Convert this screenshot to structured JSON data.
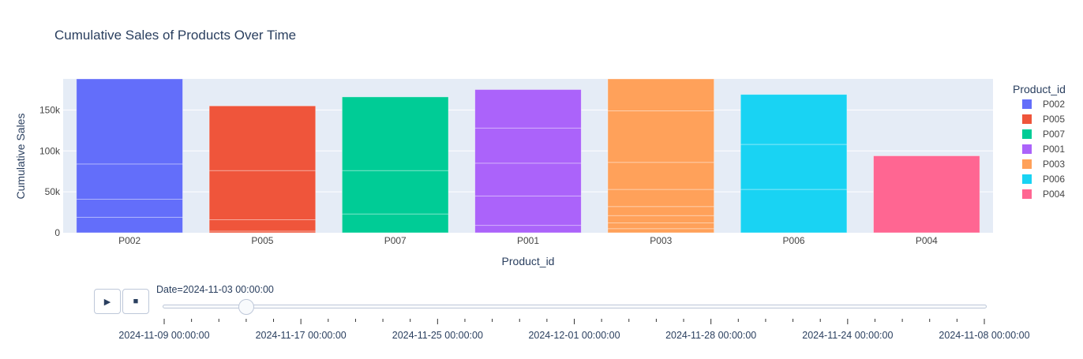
{
  "chart_data": {
    "type": "bar",
    "title": "Cumulative Sales of Products Over Time",
    "xlabel": "Product_id",
    "ylabel": "Cumulative Sales",
    "ylim": [
      0,
      188000
    ],
    "yticks": [
      0,
      50000,
      100000,
      150000
    ],
    "ytick_labels": [
      "0",
      "50k",
      "100k",
      "150k"
    ],
    "grid": true,
    "legend_position": "right",
    "legend_title": "Product_id",
    "categories": [
      "P002",
      "P005",
      "P007",
      "P001",
      "P003",
      "P006",
      "P004"
    ],
    "series": [
      {
        "name": "P002",
        "color": "#636efa",
        "segments": [
          19000,
          22000,
          43000,
          104000
        ]
      },
      {
        "name": "P005",
        "color": "#ef553b",
        "segments": [
          2000,
          14000,
          60000,
          79000
        ]
      },
      {
        "name": "P007",
        "color": "#00cc96",
        "segments": [
          23000,
          53000,
          90000
        ]
      },
      {
        "name": "P001",
        "color": "#ab63fa",
        "segments": [
          9000,
          36000,
          40000,
          43000,
          47000
        ]
      },
      {
        "name": "P003",
        "color": "#ffa15a",
        "segments": [
          5000,
          7000,
          9000,
          11000,
          21000,
          33000,
          63000,
          39000
        ]
      },
      {
        "name": "P006",
        "color": "#19d3f3",
        "segments": [
          53000,
          55000,
          61000
        ]
      },
      {
        "name": "P004",
        "color": "#ff6692",
        "segments": [
          94000
        ]
      }
    ]
  },
  "slider": {
    "current_label": "Date=2024-11-03 00:00:00",
    "current_fraction": 0.1,
    "tick_count": 31,
    "labels": [
      "2024-11-09 00:00:00",
      "2024-11-17 00:00:00",
      "2024-11-25 00:00:00",
      "2024-12-01 00:00:00",
      "2024-11-28 00:00:00",
      "2024-11-24 00:00:00",
      "2024-11-08 00:00:00"
    ]
  },
  "controls": {
    "play_icon": "play-icon",
    "stop_icon": "stop-icon",
    "play_glyph": "▶",
    "stop_glyph": "■"
  }
}
